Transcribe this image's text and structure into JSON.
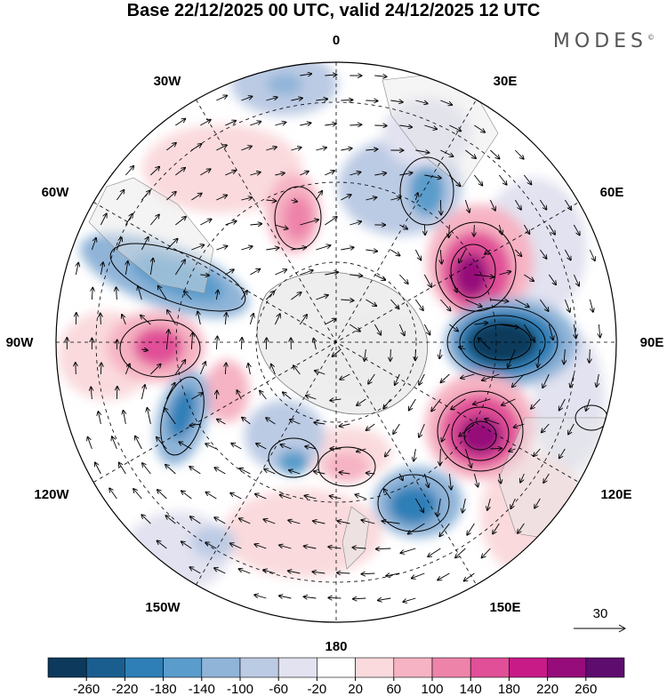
{
  "title": "Base 22/12/2025 00 UTC, valid 24/12/2025 12 UTC",
  "brand": "MODES",
  "brand_mark": "©",
  "longitude_labels": {
    "top": "0",
    "top_right": "30E",
    "upper_right": "60E",
    "right": "90E",
    "lower_right": "120E",
    "bottom_right": "150E",
    "bottom": "180",
    "bottom_left": "150W",
    "lower_left": "120W",
    "left": "90W",
    "upper_left": "60W",
    "top_left": "30W"
  },
  "vector_legend": "30",
  "colorbar": {
    "ticks": [
      "-260",
      "-220",
      "-180",
      "-140",
      "-100",
      "-60",
      "-20",
      "20",
      "60",
      "100",
      "140",
      "180",
      "220",
      "260"
    ],
    "colors": [
      "#0d3a5c",
      "#1a5e8f",
      "#2e7fb7",
      "#5a9ccb",
      "#8fb4d8",
      "#bccbe4",
      "#e2e2f0",
      "#ffffff",
      "#fadadd",
      "#f6b3c3",
      "#ee83aa",
      "#e04f97",
      "#c81b88",
      "#960c7a",
      "#5e0c6e"
    ]
  },
  "anomalies": [
    {
      "label": "cold-core-90E",
      "color": "#0d3a5c"
    },
    {
      "label": "warm-core-110E",
      "color": "#960c7a"
    },
    {
      "label": "warm-core-60E",
      "color": "#960c7a"
    },
    {
      "label": "warm-core-90W",
      "color": "#e04f97"
    },
    {
      "label": "cold-core-135E",
      "color": "#2e7fb7"
    },
    {
      "label": "cold-core-60W",
      "color": "#5a9ccb"
    },
    {
      "label": "cold-core-110W",
      "color": "#2e7fb7"
    }
  ]
}
